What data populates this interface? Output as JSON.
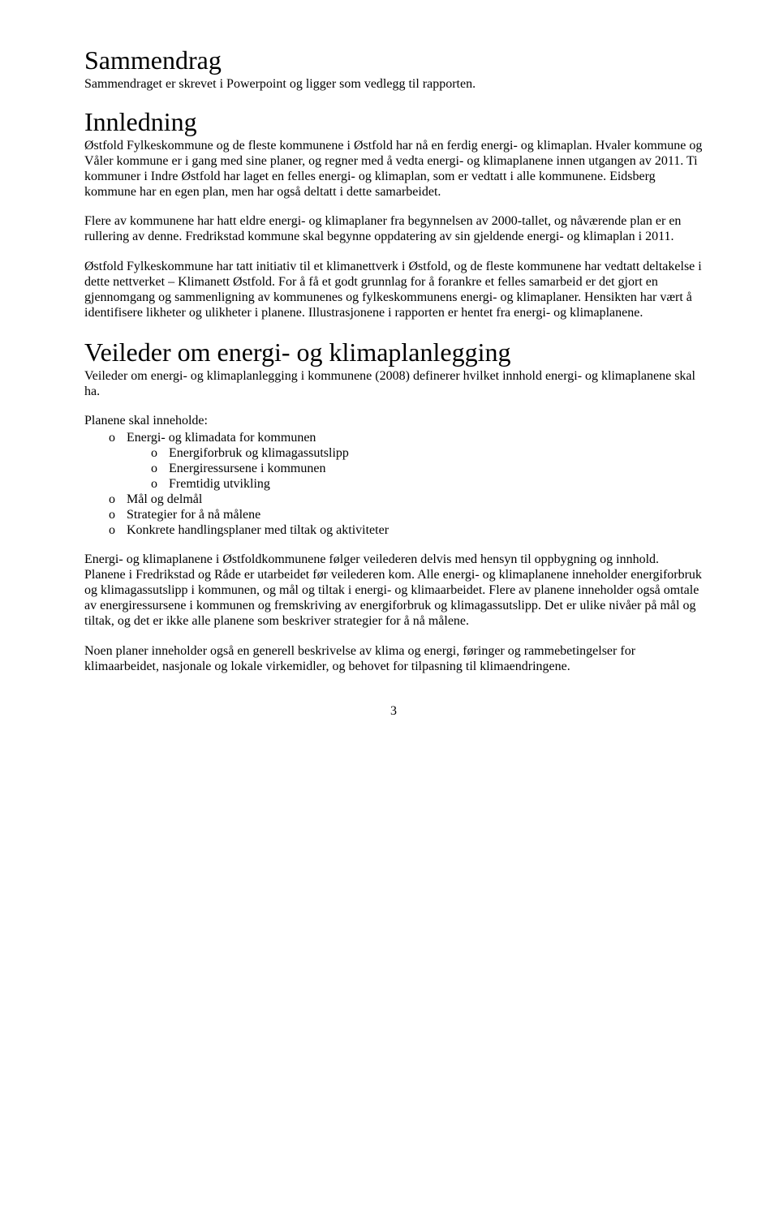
{
  "sammendrag": {
    "title": "Sammendrag",
    "p1": "Sammendraget er skrevet i Powerpoint og ligger som vedlegg til rapporten."
  },
  "innledning": {
    "title": "Innledning",
    "p1": "Østfold Fylkeskommune og de fleste kommunene i Østfold har nå en ferdig energi- og klimaplan. Hvaler kommune og Våler kommune er i gang med sine planer, og regner med å vedta energi- og klimaplanene innen utgangen av 2011. Ti kommuner i Indre Østfold har laget en felles energi- og klimaplan, som er vedtatt i alle kommunene. Eidsberg kommune har en egen plan, men har også deltatt i dette samarbeidet.",
    "p2": "Flere av kommunene har hatt eldre energi- og klimaplaner fra begynnelsen av 2000-tallet, og nåværende plan er en rullering av denne. Fredrikstad kommune skal begynne oppdatering av sin gjeldende energi- og klimaplan i 2011.",
    "p3": "Østfold Fylkeskommune har tatt initiativ til et klimanettverk i Østfold, og de fleste kommunene har vedtatt deltakelse i dette nettverket – Klimanett Østfold. For å få et godt grunnlag for å forankre et felles samarbeid er det gjort en gjennomgang og sammenligning av kommunenes og fylkeskommunens energi- og klimaplaner. Hensikten har vært å identifisere likheter og ulikheter i planene. Illustrasjonene i rapporten er hentet fra energi- og klimaplanene."
  },
  "veileder": {
    "title": "Veileder om energi- og klimaplanlegging",
    "p1": "Veileder om energi- og klimaplanlegging i kommunene (2008) definerer hvilket innhold energi- og klimaplanene skal ha.",
    "list_intro": "Planene skal inneholde:",
    "items": [
      "Energi- og klimadata for kommunen",
      "Mål og delmål",
      "Strategier for å nå målene",
      "Konkrete handlingsplaner med tiltak og aktiviteter"
    ],
    "subitems": [
      "Energiforbruk og klimagassutslipp",
      "Energiressursene i kommunen",
      "Fremtidig utvikling"
    ],
    "p2": "Energi- og klimaplanene i Østfoldkommunene følger veilederen delvis med hensyn til oppbygning og innhold. Planene i Fredrikstad og Råde er utarbeidet før veilederen kom. Alle energi- og klimaplanene inneholder energiforbruk og klimagassutslipp i kommunen, og mål og tiltak i energi- og klimaarbeidet. Flere av planene inneholder også omtale av energiressursene i kommunen og fremskriving av energiforbruk og klimagassutslipp. Det er ulike nivåer på mål og tiltak, og det er ikke alle planene som beskriver strategier for å nå målene.",
    "p3": "Noen planer inneholder også en generell beskrivelse av klima og energi, føringer og rammebetingelser for klimaarbeidet, nasjonale og lokale virkemidler, og behovet for tilpasning til klimaendringene."
  },
  "page_number": "3"
}
